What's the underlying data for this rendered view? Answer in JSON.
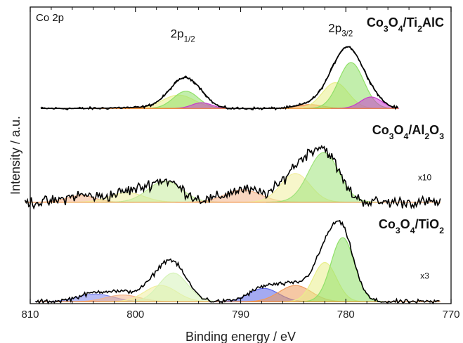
{
  "chart_data": {
    "type": "line",
    "corner_label": "Co 2p",
    "xlabel": "Binding energy / eV",
    "ylabel": "Intensity / a.u.",
    "xlim": [
      810,
      770
    ],
    "x_reversed": true,
    "xticks": [
      810,
      800,
      790,
      780,
      770
    ],
    "ylim": [
      0,
      3.1
    ],
    "y_ticks_visible": false,
    "grid": false,
    "panels": [
      {
        "label": "Co₃O₄/Ti₂AlC",
        "label_parts": [
          [
            "Co",
            ""
          ],
          [
            "3",
            "sub"
          ],
          [
            "O",
            ""
          ],
          [
            "4",
            "sub"
          ],
          [
            "/Ti",
            ""
          ],
          [
            "2",
            "sub"
          ],
          [
            "AlC",
            ""
          ]
        ],
        "baseline": 2.04,
        "noise": 0.012,
        "x_range": [
          809,
          775
        ],
        "annotations": [
          {
            "parts": [
              [
                "2p",
                ""
              ],
              [
                "1/2",
                "sub"
              ]
            ],
            "x": 795.5,
            "y": 2.78
          },
          {
            "parts": [
              [
                "2p",
                ""
              ],
              [
                "3/2",
                "sub"
              ]
            ],
            "x": 780.5,
            "y": 2.84
          }
        ],
        "components": [
          {
            "center": 795.9,
            "height": 0.14,
            "fwhm": 3.6,
            "color": "#e9ef8a"
          },
          {
            "center": 795.2,
            "height": 0.18,
            "fwhm": 2.8,
            "color": "#90e068"
          },
          {
            "center": 793.7,
            "height": 0.06,
            "fwhm": 2.2,
            "color": "#c83ccc"
          },
          {
            "center": 801.0,
            "height": 0.008,
            "fwhm": 3.5,
            "color": "#ef8c3c"
          },
          {
            "center": 783.4,
            "height": 0.04,
            "fwhm": 3.0,
            "color": "#ef8c3c"
          },
          {
            "center": 781.0,
            "height": 0.27,
            "fwhm": 2.9,
            "color": "#e9ef8a"
          },
          {
            "center": 779.5,
            "height": 0.48,
            "fwhm": 2.8,
            "color": "#90e068"
          },
          {
            "center": 777.6,
            "height": 0.12,
            "fwhm": 2.4,
            "color": "#c83ccc"
          }
        ]
      },
      {
        "label": "Co₃O₄/Al₂O₃",
        "label_parts": [
          [
            "Co",
            ""
          ],
          [
            "3",
            "sub"
          ],
          [
            "O",
            ""
          ],
          [
            "4",
            "sub"
          ],
          [
            "/Al",
            ""
          ],
          [
            "2",
            "sub"
          ],
          [
            "O",
            ""
          ],
          [
            "3",
            "sub"
          ]
        ],
        "baseline": 1.06,
        "noise": 0.05,
        "x_range": [
          810.5,
          771
        ],
        "multiplier": "x10",
        "multiplier_x": 772.5,
        "multiplier_y": 1.29,
        "components": [
          {
            "center": 805.2,
            "height": 0.07,
            "fwhm": 3.2,
            "color": "#f4b48a"
          },
          {
            "center": 800.8,
            "height": 0.1,
            "fwhm": 3.8,
            "color": "#f1ef9e"
          },
          {
            "center": 797.2,
            "height": 0.22,
            "fwhm": 3.8,
            "color": "#c4eb9a"
          },
          {
            "center": 789.8,
            "height": 0.13,
            "fwhm": 4.0,
            "color": "#f4b48a"
          },
          {
            "center": 784.8,
            "height": 0.3,
            "fwhm": 3.3,
            "color": "#f1ef9e"
          },
          {
            "center": 782.1,
            "height": 0.52,
            "fwhm": 3.4,
            "color": "#9fe37a"
          }
        ]
      },
      {
        "label": "Co₃O₄/TiO₂",
        "label_parts": [
          [
            "Co",
            ""
          ],
          [
            "3",
            "sub"
          ],
          [
            "O",
            ""
          ],
          [
            "4",
            "sub"
          ],
          [
            "/TiO",
            ""
          ],
          [
            "2",
            "sub"
          ]
        ],
        "baseline": 0.02,
        "noise": 0.018,
        "x_range": [
          809.5,
          771
        ],
        "multiplier": "x3",
        "multiplier_x": 772.5,
        "multiplier_y": 0.26,
        "components": [
          {
            "center": 803.8,
            "height": 0.08,
            "fwhm": 4.0,
            "color": "#7f86ee"
          },
          {
            "center": 801.2,
            "height": 0.07,
            "fwhm": 3.8,
            "color": "#f4b48a"
          },
          {
            "center": 797.6,
            "height": 0.17,
            "fwhm": 3.6,
            "color": "#f1ef9e"
          },
          {
            "center": 796.4,
            "height": 0.3,
            "fwhm": 3.2,
            "color": "#d6f3b8"
          },
          {
            "center": 787.8,
            "height": 0.14,
            "fwhm": 3.3,
            "color": "#5a64e6"
          },
          {
            "center": 784.8,
            "height": 0.17,
            "fwhm": 3.6,
            "color": "#ef9a5a"
          },
          {
            "center": 782.0,
            "height": 0.41,
            "fwhm": 2.6,
            "color": "#e9ef8a"
          },
          {
            "center": 780.3,
            "height": 0.67,
            "fwhm": 2.6,
            "color": "#90e068"
          }
        ]
      }
    ]
  }
}
